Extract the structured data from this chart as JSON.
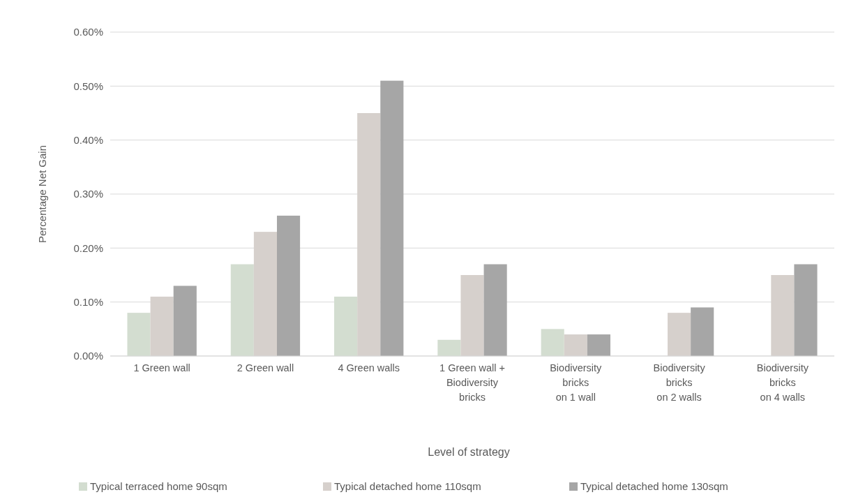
{
  "chart_data": {
    "type": "bar",
    "categories": [
      "1 Green wall",
      "2 Green wall",
      "4 Green walls",
      "1 Green wall +\nBiodiversity\nbricks",
      "Biodiversity\nbricks\non 1 wall",
      "Biodiversity\nbricks\non 2 walls",
      "Biodiversity\nbricks\non 4 walls"
    ],
    "series": [
      {
        "name": "Typical terraced home 90sqm",
        "color": "#d3ddd0",
        "values": [
          0.08,
          0.17,
          0.11,
          0.03,
          0.05,
          null,
          null
        ]
      },
      {
        "name": "Typical detached home 110sqm",
        "color": "#d6d0cc",
        "values": [
          0.11,
          0.23,
          0.45,
          0.15,
          0.04,
          0.08,
          0.15
        ]
      },
      {
        "name": "Typical detached home 130sqm",
        "color": "#a6a6a6",
        "values": [
          0.13,
          0.26,
          0.51,
          0.17,
          0.04,
          0.09,
          0.17
        ]
      }
    ],
    "xlabel": "Level of strategy",
    "ylabel": "Percentage Net Gain",
    "ylim": [
      0,
      0.6
    ],
    "yticks": [
      {
        "value": 0,
        "label": "0.00%"
      },
      {
        "value": 0.1,
        "label": "0.10%"
      },
      {
        "value": 0.2,
        "label": "0.20%"
      },
      {
        "value": 0.3,
        "label": "0.30%"
      },
      {
        "value": 0.4,
        "label": "0.40%"
      },
      {
        "value": 0.5,
        "label": "0.50%"
      },
      {
        "value": 0.6,
        "label": "0.60%"
      }
    ],
    "grid": "y",
    "legend": "bottom"
  }
}
